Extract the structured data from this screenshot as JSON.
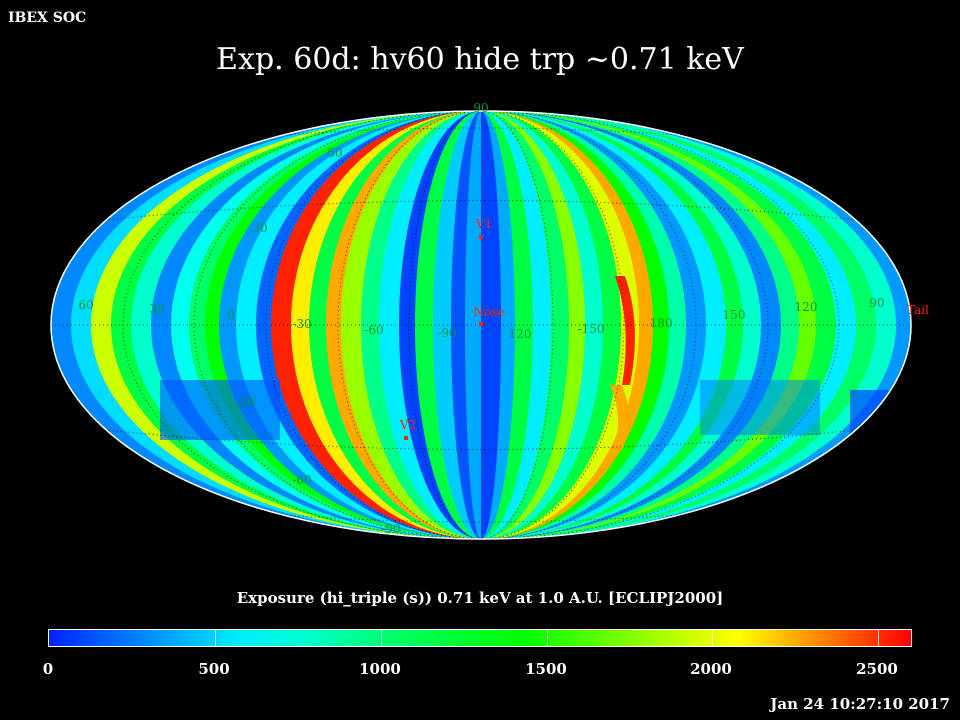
{
  "header": {
    "corner_label": "IBEX SOC",
    "title": "Exp.   60d: hv60 hide trp ~0.71 keV"
  },
  "map": {
    "projection": "Aitoff/Hammer ellipse, ecliptic J2000",
    "longitude_labels": [
      "60",
      "30",
      "0",
      "-30",
      "-60",
      "-90",
      "120",
      "-150",
      "180",
      "150",
      "120",
      "90"
    ],
    "latitude_labels": [
      "90",
      "60",
      "30",
      "-30",
      "-60",
      "-90"
    ],
    "markers": [
      {
        "name": "V1",
        "label": "V1"
      },
      {
        "name": "Nose",
        "label": "Nose"
      },
      {
        "name": "V2",
        "label": "V2"
      },
      {
        "name": "Tail",
        "label": "Tail"
      }
    ],
    "colors": {
      "marker": "#ff2200",
      "grid": "#000000",
      "outline": "#ffffff"
    }
  },
  "colorbar": {
    "title": "Exposure (hi_triple (s))  0.71 keV at 1.0 A.U. [ECLIPJ2000]",
    "ticks": [
      "0",
      "500",
      "1000",
      "1500",
      "2000",
      "2500"
    ],
    "range": [
      0,
      2600
    ]
  },
  "footer": {
    "timestamp": "Jan 24 10:27:10 2017"
  }
}
